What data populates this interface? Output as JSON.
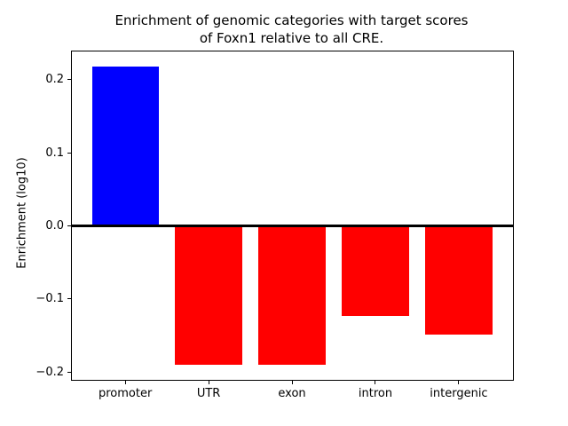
{
  "chart_data": {
    "type": "bar",
    "title": "Enrichment of genomic categories with target scores\nof Foxn1 relative to all CRE.",
    "xlabel": "",
    "ylabel": "Enrichment (log10)",
    "categories": [
      "promoter",
      "UTR",
      "exon",
      "intron",
      "intergenic"
    ],
    "values": [
      0.218,
      -0.19,
      -0.19,
      -0.123,
      -0.148
    ],
    "bar_colors": [
      "#0000ff",
      "#ff0000",
      "#ff0000",
      "#ff0000",
      "#ff0000"
    ],
    "bar_width": 0.8,
    "ylim": [
      -0.2104,
      0.2384
    ],
    "xlim": [
      -0.64,
      4.65
    ],
    "yticks": {
      "values": [
        -0.2,
        -0.1,
        0.0,
        0.1,
        0.2
      ],
      "labels": [
        "−0.2",
        "−0.1",
        "0.0",
        "0.1",
        "0.2"
      ]
    },
    "zero_line": {
      "y": 0,
      "color": "#000000"
    },
    "grid": false,
    "legend": null,
    "background_color": "#ffffff",
    "text_color": "#000000"
  }
}
